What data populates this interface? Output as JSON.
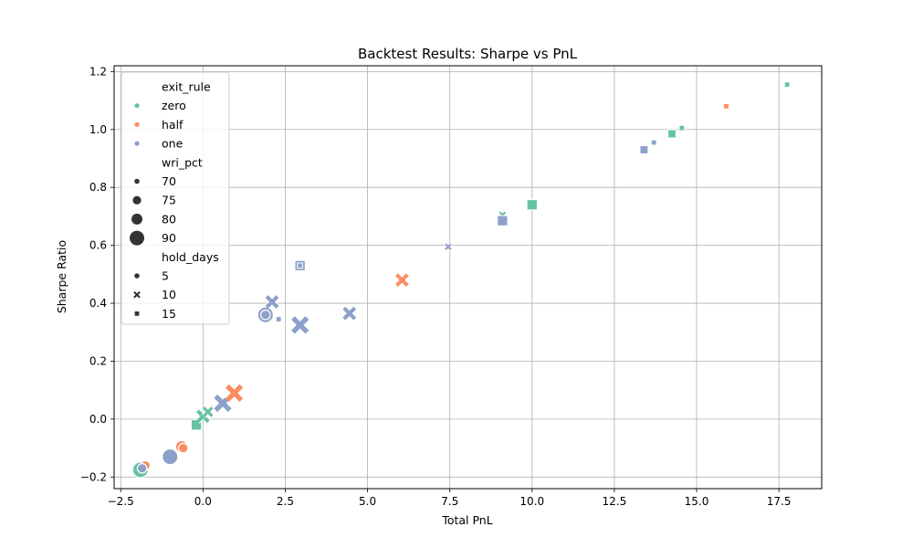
{
  "chart_data": {
    "type": "scatter",
    "title": "Backtest Results: Sharpe vs PnL",
    "xlabel": "Total PnL",
    "ylabel": "Sharpe Ratio",
    "xlim": [
      -2.7,
      18.8
    ],
    "ylim": [
      -0.24,
      1.22
    ],
    "xticks": [
      -2.5,
      0.0,
      2.5,
      5.0,
      7.5,
      10.0,
      12.5,
      15.0,
      17.5
    ],
    "xtick_labels": [
      "−2.5",
      "0.0",
      "2.5",
      "5.0",
      "7.5",
      "10.0",
      "12.5",
      "15.0",
      "17.5"
    ],
    "yticks": [
      -0.2,
      0.0,
      0.2,
      0.4,
      0.6,
      0.8,
      1.0,
      1.2
    ],
    "ytick_labels": [
      "−0.2",
      "0.0",
      "0.2",
      "0.4",
      "0.6",
      "0.8",
      "1.0",
      "1.2"
    ],
    "grid": true,
    "legend_position": "top-left",
    "colors": {
      "zero": "#66c2a5",
      "half": "#fc8d62",
      "one": "#8da0cb",
      "grid": "#b0b0b0"
    },
    "legend": {
      "hue_title": "exit_rule",
      "hue": [
        "zero",
        "half",
        "one"
      ],
      "size_title": "wri_pct",
      "sizes": [
        "70",
        "75",
        "80",
        "90"
      ],
      "style_title": "hold_days",
      "styles": [
        "5",
        "10",
        "15"
      ]
    },
    "points": [
      {
        "x": -1.9,
        "y": -0.175,
        "exit_rule": "zero",
        "wri_pct": 90,
        "hold_days": 5
      },
      {
        "x": -1.75,
        "y": -0.16,
        "exit_rule": "half",
        "wri_pct": 75,
        "hold_days": 5
      },
      {
        "x": -1.85,
        "y": -0.17,
        "exit_rule": "one",
        "wri_pct": 75,
        "hold_days": 5
      },
      {
        "x": -1.0,
        "y": -0.13,
        "exit_rule": "one",
        "wri_pct": 90,
        "hold_days": 5
      },
      {
        "x": -0.65,
        "y": -0.095,
        "exit_rule": "half",
        "wri_pct": 80,
        "hold_days": 5
      },
      {
        "x": -0.6,
        "y": -0.1,
        "exit_rule": "half",
        "wri_pct": 75,
        "hold_days": 5
      },
      {
        "x": -0.2,
        "y": -0.02,
        "exit_rule": "zero",
        "wri_pct": 80,
        "hold_days": 15
      },
      {
        "x": 0.0,
        "y": 0.01,
        "exit_rule": "zero",
        "wri_pct": 80,
        "hold_days": 10
      },
      {
        "x": 0.15,
        "y": 0.025,
        "exit_rule": "zero",
        "wri_pct": 75,
        "hold_days": 10
      },
      {
        "x": 0.6,
        "y": 0.055,
        "exit_rule": "one",
        "wri_pct": 90,
        "hold_days": 10
      },
      {
        "x": 0.95,
        "y": 0.09,
        "exit_rule": "half",
        "wri_pct": 90,
        "hold_days": 10
      },
      {
        "x": 1.9,
        "y": 0.36,
        "exit_rule": "one",
        "wri_pct": 90,
        "hold_days": 5
      },
      {
        "x": 1.9,
        "y": 0.36,
        "exit_rule": "one",
        "wri_pct": 75,
        "hold_days": 5
      },
      {
        "x": 2.1,
        "y": 0.405,
        "exit_rule": "one",
        "wri_pct": 80,
        "hold_days": 10
      },
      {
        "x": 2.3,
        "y": 0.345,
        "exit_rule": "one",
        "wri_pct": 70,
        "hold_days": 15
      },
      {
        "x": 2.95,
        "y": 0.53,
        "exit_rule": "one",
        "wri_pct": 80,
        "hold_days": 15
      },
      {
        "x": 2.95,
        "y": 0.53,
        "exit_rule": "one",
        "wri_pct": 70,
        "hold_days": 15
      },
      {
        "x": 2.95,
        "y": 0.325,
        "exit_rule": "one",
        "wri_pct": 90,
        "hold_days": 10
      },
      {
        "x": 4.45,
        "y": 0.365,
        "exit_rule": "one",
        "wri_pct": 80,
        "hold_days": 10
      },
      {
        "x": 6.05,
        "y": 0.48,
        "exit_rule": "half",
        "wri_pct": 80,
        "hold_days": 10
      },
      {
        "x": 7.45,
        "y": 0.595,
        "exit_rule": "one",
        "wri_pct": 70,
        "hold_days": 10
      },
      {
        "x": 9.1,
        "y": 0.705,
        "exit_rule": "zero",
        "wri_pct": 70,
        "hold_days": 10
      },
      {
        "x": 9.1,
        "y": 0.685,
        "exit_rule": "one",
        "wri_pct": 80,
        "hold_days": 15
      },
      {
        "x": 10.0,
        "y": 0.74,
        "exit_rule": "zero",
        "wri_pct": 80,
        "hold_days": 15
      },
      {
        "x": 13.4,
        "y": 0.93,
        "exit_rule": "one",
        "wri_pct": 75,
        "hold_days": 15
      },
      {
        "x": 13.7,
        "y": 0.955,
        "exit_rule": "one",
        "wri_pct": 70,
        "hold_days": 15
      },
      {
        "x": 14.25,
        "y": 0.985,
        "exit_rule": "zero",
        "wri_pct": 75,
        "hold_days": 15
      },
      {
        "x": 14.55,
        "y": 1.005,
        "exit_rule": "zero",
        "wri_pct": 70,
        "hold_days": 15
      },
      {
        "x": 15.9,
        "y": 1.08,
        "exit_rule": "half",
        "wri_pct": 70,
        "hold_days": 15
      },
      {
        "x": 17.75,
        "y": 1.155,
        "exit_rule": "zero",
        "wri_pct": 70,
        "hold_days": 15
      }
    ]
  }
}
